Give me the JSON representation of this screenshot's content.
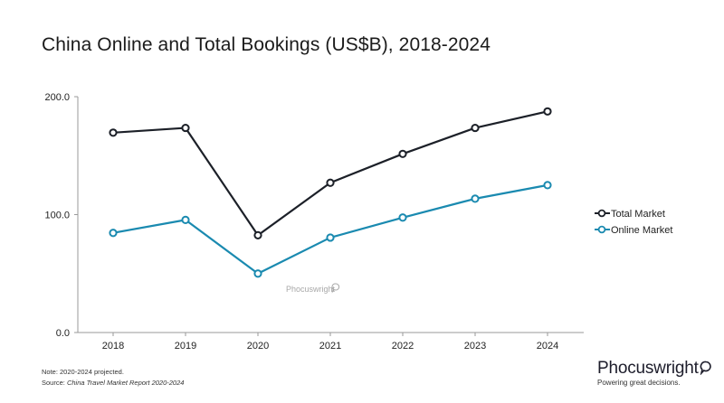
{
  "title": "China Online and Total Bookings (US$B), 2018-2024",
  "chart_data": {
    "type": "line",
    "categories": [
      "2018",
      "2019",
      "2020",
      "2021",
      "2022",
      "2023",
      "2024"
    ],
    "series": [
      {
        "name": "Total Market",
        "values": [
          169.5,
          173.5,
          82.5,
          127.0,
          151.5,
          173.5,
          187.5
        ],
        "color": "#1c2028"
      },
      {
        "name": "Online Market",
        "values": [
          84.5,
          95.5,
          50.0,
          80.5,
          97.5,
          113.5,
          125.0
        ],
        "color": "#1a8ab0"
      }
    ],
    "ylim": [
      0,
      200
    ],
    "yticks": [
      0,
      100,
      200
    ],
    "ytick_labels": [
      "0.0",
      "100.0",
      "200.0"
    ],
    "legend_position": "right",
    "grid": false
  },
  "watermark": "Phocuswright",
  "footer": {
    "note": "Note: 2020-2024 projected.",
    "source_prefix": "Source: ",
    "source_title": "China Travel Market Report 2020-2024"
  },
  "brand": {
    "name": "Phocuswright",
    "tagline": "Powering great decisions."
  }
}
